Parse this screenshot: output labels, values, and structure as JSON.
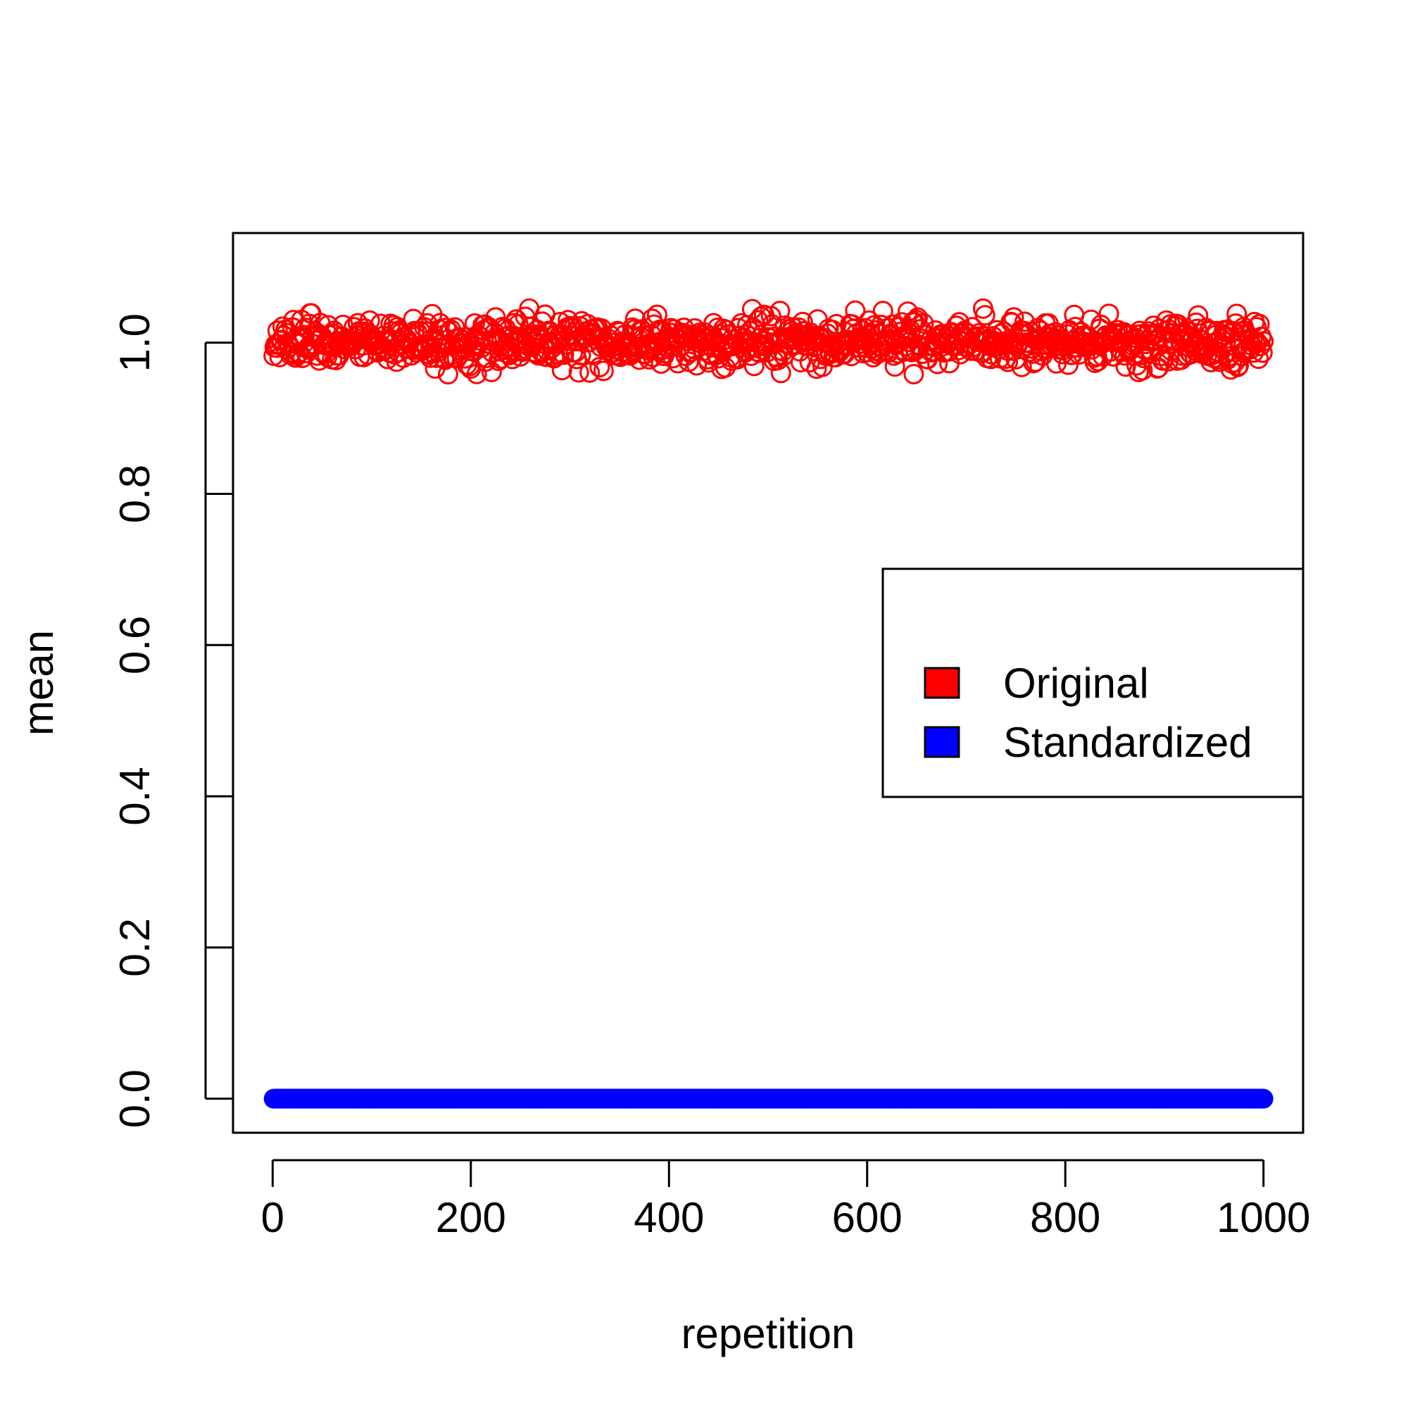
{
  "chart_data": {
    "type": "scatter",
    "title": "",
    "xlabel": "repetition",
    "ylabel": "mean",
    "xlim": [
      -40,
      1040
    ],
    "ylim": [
      -0.045,
      1.145
    ],
    "x_ticks": [
      "0",
      "200",
      "400",
      "600",
      "800",
      "1000"
    ],
    "y_ticks": [
      "0.0",
      "0.2",
      "0.4",
      "0.6",
      "0.8",
      "1.0"
    ],
    "grid": false,
    "legend": {
      "position": "right",
      "entries": [
        {
          "label": "Original",
          "color": "#ff0000"
        },
        {
          "label": "Standardized",
          "color": "#0000ff"
        }
      ]
    },
    "series": [
      {
        "name": "Original",
        "color": "#ff0000",
        "marker": "open-circle",
        "n_points": 1000,
        "x_range": [
          1,
          1000
        ],
        "center": 1.0,
        "spread_sd": 0.016,
        "min": 0.945,
        "max": 1.045
      },
      {
        "name": "Standardized",
        "color": "#0000ff",
        "marker": "filled-circle",
        "n_points": 1000,
        "x_range": [
          1,
          1000
        ],
        "value": 0.0
      }
    ]
  }
}
